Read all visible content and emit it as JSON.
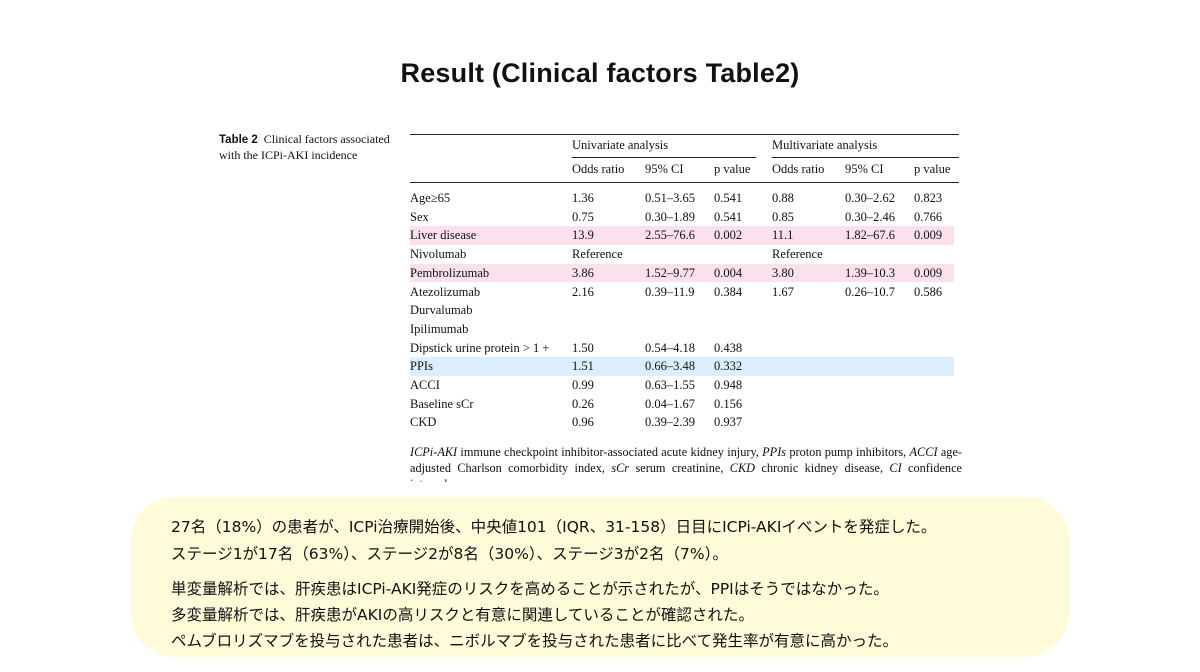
{
  "slide": {
    "title": "Result (Clinical factors  Table2)"
  },
  "table": {
    "caption_label": "Table 2",
    "caption_text": "Clinical factors associated with the ICPi-AKI incidence",
    "group_univariate": "Univariate analysis",
    "group_multivariate": "Multivariate analysis",
    "col_or": "Odds ratio",
    "col_ci": "95% CI",
    "col_p": "p value",
    "rows": [
      {
        "label": "Age≥65",
        "u_or": "1.36",
        "u_ci": "0.51–3.65",
        "u_p": "0.541",
        "m_or": "0.88",
        "m_ci": "0.30–2.62",
        "m_p": "0.823",
        "highlight": ""
      },
      {
        "label": "Sex",
        "u_or": "0.75",
        "u_ci": "0.30–1.89",
        "u_p": "0.541",
        "m_or": "0.85",
        "m_ci": "0.30–2.46",
        "m_p": "0.766",
        "highlight": ""
      },
      {
        "label": "Liver disease",
        "u_or": "13.9",
        "u_ci": "2.55–76.6",
        "u_p": "0.002",
        "m_or": "11.1",
        "m_ci": "1.82–67.6",
        "m_p": "0.009",
        "highlight": "pink"
      },
      {
        "label": "Nivolumab",
        "u_or": "Reference",
        "u_ci": "",
        "u_p": "",
        "m_or": "Reference",
        "m_ci": "",
        "m_p": "",
        "highlight": ""
      },
      {
        "label": "Pembrolizumab",
        "u_or": "3.86",
        "u_ci": "1.52–9.77",
        "u_p": "0.004",
        "m_or": "3.80",
        "m_ci": "1.39–10.3",
        "m_p": "0.009",
        "highlight": "pink"
      },
      {
        "label": "Atezolizumab",
        "u_or": "2.16",
        "u_ci": "0.39–11.9",
        "u_p": "0.384",
        "m_or": "1.67",
        "m_ci": "0.26–10.7",
        "m_p": "0.586",
        "highlight": ""
      },
      {
        "label": "Durvalumab",
        "u_or": "",
        "u_ci": "",
        "u_p": "",
        "m_or": "",
        "m_ci": "",
        "m_p": "",
        "highlight": ""
      },
      {
        "label": "Ipilimumab",
        "u_or": "",
        "u_ci": "",
        "u_p": "",
        "m_or": "",
        "m_ci": "",
        "m_p": "",
        "highlight": ""
      },
      {
        "label": "Dipstick urine protein > 1 +",
        "u_or": "1.50",
        "u_ci": "0.54–4.18",
        "u_p": "0.438",
        "m_or": "",
        "m_ci": "",
        "m_p": "",
        "highlight": ""
      },
      {
        "label": "PPIs",
        "u_or": "1.51",
        "u_ci": "0.66–3.48",
        "u_p": "0.332",
        "m_or": "",
        "m_ci": "",
        "m_p": "",
        "highlight": "blue"
      },
      {
        "label": "ACCI",
        "u_or": "0.99",
        "u_ci": "0.63–1.55",
        "u_p": "0.948",
        "m_or": "",
        "m_ci": "",
        "m_p": "",
        "highlight": ""
      },
      {
        "label": "Baseline sCr",
        "u_or": "0.26",
        "u_ci": "0.04–1.67",
        "u_p": "0.156",
        "m_or": "",
        "m_ci": "",
        "m_p": "",
        "highlight": ""
      },
      {
        "label": "CKD",
        "u_or": "0.96",
        "u_ci": "0.39–2.39",
        "u_p": "0.937",
        "m_or": "",
        "m_ci": "",
        "m_p": "",
        "highlight": ""
      }
    ],
    "footnote": [
      {
        "abbr": "ICPi-AKI",
        "text": " immune checkpoint inhibitor-associated acute kidney injury, "
      },
      {
        "abbr": "PPIs",
        "text": " proton pump inhibitors, "
      },
      {
        "abbr": "ACCI",
        "text": " age-adjusted Charlson comorbidity index, "
      },
      {
        "abbr": "sCr",
        "text": " serum creatinine, "
      },
      {
        "abbr": "CKD",
        "text": " chronic kidney disease, "
      },
      {
        "abbr": "CI",
        "text": " confidence interval"
      }
    ]
  },
  "summary": {
    "lines": [
      "27名（18%）の患者が、ICPi治療開始後、中央値101（IQR、31-158）日目にICPi-AKIイベントを発症した。",
      "ステージ1が17名（63%）、ステージ2が8名（30%）、ステージ3が2名（7%）。",
      "単変量解析では、肝疾患はICPi-AKI発症のリスクを高めることが示されたが、PPIはそうではなかった。",
      "多変量解析では、肝疾患がAKIの高リスクと有意に関連していることが確認された。",
      "ペムブロリズマブを投与された患者は、ニボルマブを投与された患者に比べて発生率が有意に高かった。"
    ]
  },
  "colors": {
    "pink_highlight": "#fbe0ee",
    "blue_highlight": "#dcefff",
    "summary_bg": "#fefbd8"
  }
}
